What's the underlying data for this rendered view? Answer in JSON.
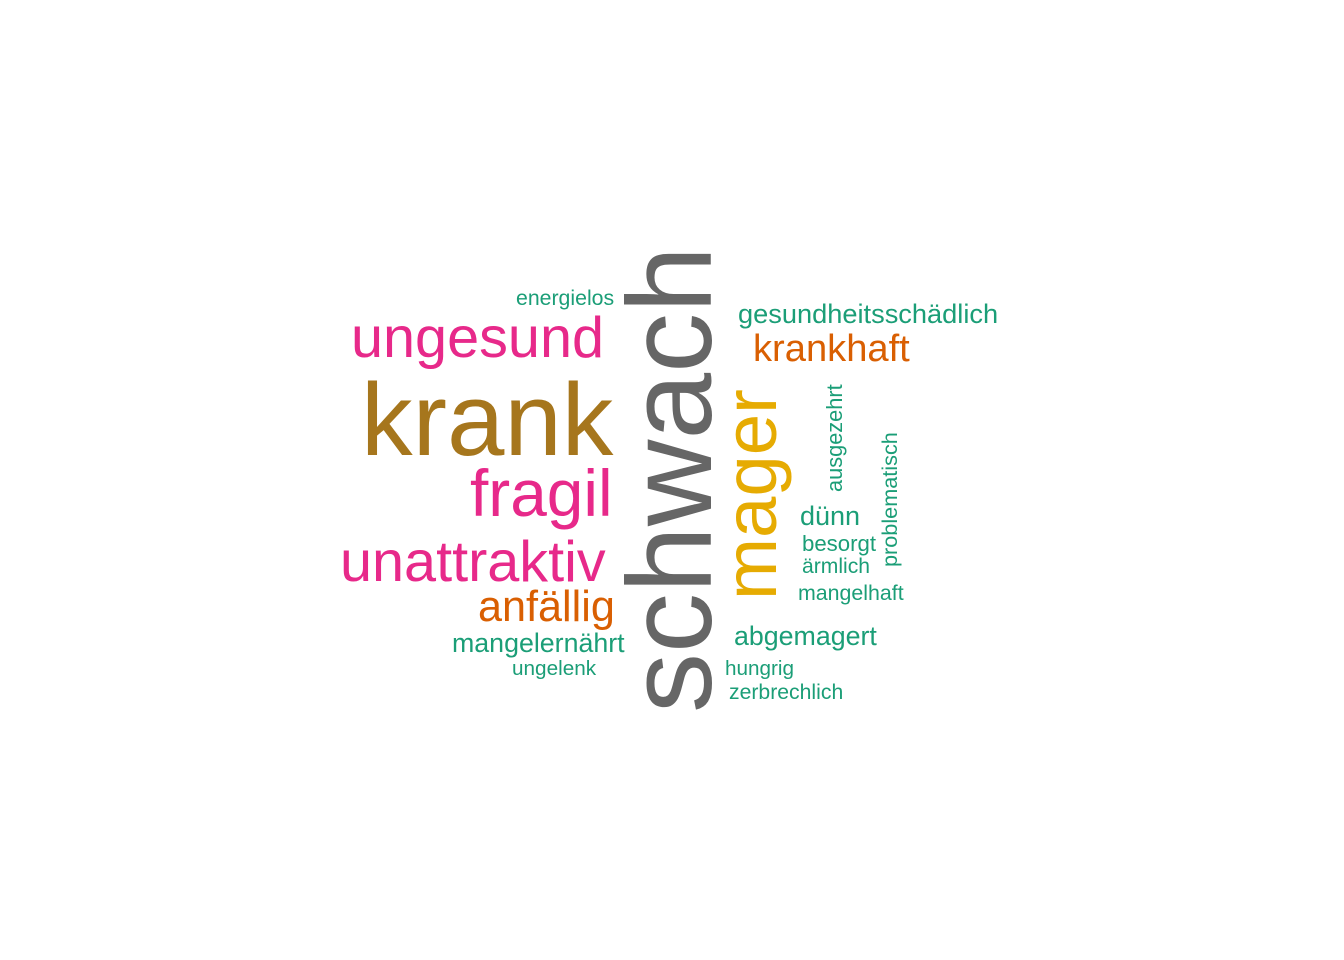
{
  "colors": {
    "gray": "#666666",
    "olive": "#A6761D",
    "magenta": "#E7298A",
    "gold": "#E6AB02",
    "orange": "#D95F02",
    "teal": "#1B9E77"
  },
  "words": [
    {
      "id": "w-schwach",
      "text": "schwach",
      "color": "gray",
      "vertical": true
    },
    {
      "id": "w-krank",
      "text": "krank",
      "color": "olive",
      "vertical": false
    },
    {
      "id": "w-mager",
      "text": "mager",
      "color": "gold",
      "vertical": true
    },
    {
      "id": "w-ungesund",
      "text": "ungesund",
      "color": "magenta",
      "vertical": false
    },
    {
      "id": "w-fragil",
      "text": "fragil",
      "color": "magenta",
      "vertical": false
    },
    {
      "id": "w-unattraktiv",
      "text": "unattraktiv",
      "color": "magenta",
      "vertical": false
    },
    {
      "id": "w-anfaellig",
      "text": "anfällig",
      "color": "orange",
      "vertical": false
    },
    {
      "id": "w-krankhaft",
      "text": "krankhaft",
      "color": "orange",
      "vertical": false
    },
    {
      "id": "w-gesundheitsschaedlich",
      "text": "gesundheitsschädlich",
      "color": "teal",
      "vertical": false
    },
    {
      "id": "w-abgemagert",
      "text": "abgemagert",
      "color": "teal",
      "vertical": false
    },
    {
      "id": "w-mangelernaehrt",
      "text": "mangelernährt",
      "color": "teal",
      "vertical": false
    },
    {
      "id": "w-duenn",
      "text": "dünn",
      "color": "teal",
      "vertical": false
    },
    {
      "id": "w-energielos",
      "text": "energielos",
      "color": "teal",
      "vertical": false
    },
    {
      "id": "w-ausgezehrt",
      "text": "ausgezehrt",
      "color": "teal",
      "vertical": true
    },
    {
      "id": "w-problematisch",
      "text": "problematisch",
      "color": "teal",
      "vertical": true
    },
    {
      "id": "w-besorgt",
      "text": "besorgt",
      "color": "teal",
      "vertical": false
    },
    {
      "id": "w-aermlich",
      "text": "ärmlich",
      "color": "teal",
      "vertical": false
    },
    {
      "id": "w-mangelhaft",
      "text": "mangelhaft",
      "color": "teal",
      "vertical": false
    },
    {
      "id": "w-ungelenk",
      "text": "ungelenk",
      "color": "teal",
      "vertical": false
    },
    {
      "id": "w-hungrig",
      "text": "hungrig",
      "color": "teal",
      "vertical": false
    },
    {
      "id": "w-zerbrechlich",
      "text": "zerbrechlich",
      "color": "teal",
      "vertical": false
    }
  ]
}
